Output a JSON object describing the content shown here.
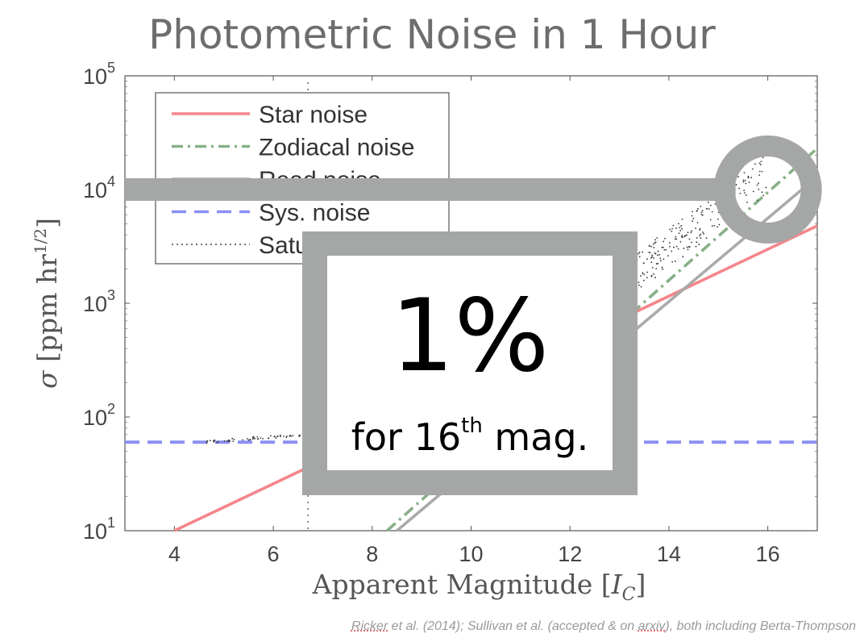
{
  "slide": {
    "title": "Photometric Noise in 1 Hour",
    "citation_prefix": "Ricker",
    "citation_mid": " et al. (2014); Sullivan et al. (accepted & on ",
    "citation_arxiv": "arxiv",
    "citation_suffix": "), both including Berta-Thompson",
    "callout": {
      "value": "1%",
      "text_before": "for 16",
      "superscript": "th",
      "text_after": " mag."
    },
    "marker_magnitude": 16,
    "marker_noise": 10000
  },
  "chart_data": {
    "type": "line",
    "xlabel": "Apparent Magnitude [I_C]",
    "xlabel_parts": {
      "main": "Apparent Magnitude [",
      "italic": "I",
      "sub": "C",
      "end": "]"
    },
    "ylabel": "σ [ppm hr^1/2]",
    "ylabel_parts": {
      "sigma": "σ",
      "main": " [ppm hr",
      "sup": "1/2",
      "end": "]"
    },
    "xlim": [
      3,
      17
    ],
    "ylim": [
      10,
      100000
    ],
    "yscale": "log",
    "x_ticks": [
      4,
      6,
      8,
      10,
      12,
      14,
      16
    ],
    "y_ticks": [
      {
        "value": 10,
        "base": "10",
        "exp": "1"
      },
      {
        "value": 100,
        "base": "10",
        "exp": "2"
      },
      {
        "value": 1000,
        "base": "10",
        "exp": "3"
      },
      {
        "value": 10000,
        "base": "10",
        "exp": "4"
      },
      {
        "value": 100000,
        "base": "10",
        "exp": "5"
      }
    ],
    "legend_position": "top-left",
    "legend": [
      {
        "name": "Star noise",
        "color": "#f4858a",
        "dash": "solid"
      },
      {
        "name": "Zodiacal noise",
        "color": "#88b088",
        "dash": "dashdot"
      },
      {
        "name": "Read noise",
        "color": "#aaaaaa",
        "dash": "solid"
      },
      {
        "name": "Sys. noise",
        "color": "#8a8ff4",
        "dash": "dashed"
      },
      {
        "name": "Saturation",
        "color": "#444444",
        "dash": "dotted"
      }
    ],
    "series": [
      {
        "name": "Star noise",
        "color": "#f4858a",
        "points": [
          [
            4,
            10
          ],
          [
            17,
            4800
          ]
        ]
      },
      {
        "name": "Zodiacal noise",
        "color": "#88b088",
        "points": [
          [
            8.3,
            10
          ],
          [
            17,
            23000
          ]
        ]
      },
      {
        "name": "Read noise",
        "color": "#aaaaaa",
        "points": [
          [
            8.5,
            10
          ],
          [
            17,
            13000
          ]
        ]
      },
      {
        "name": "Sys. noise",
        "color": "#8a8ff4",
        "points": [
          [
            3,
            60
          ],
          [
            17,
            60
          ]
        ]
      }
    ],
    "saturation_x": 6.7
  }
}
